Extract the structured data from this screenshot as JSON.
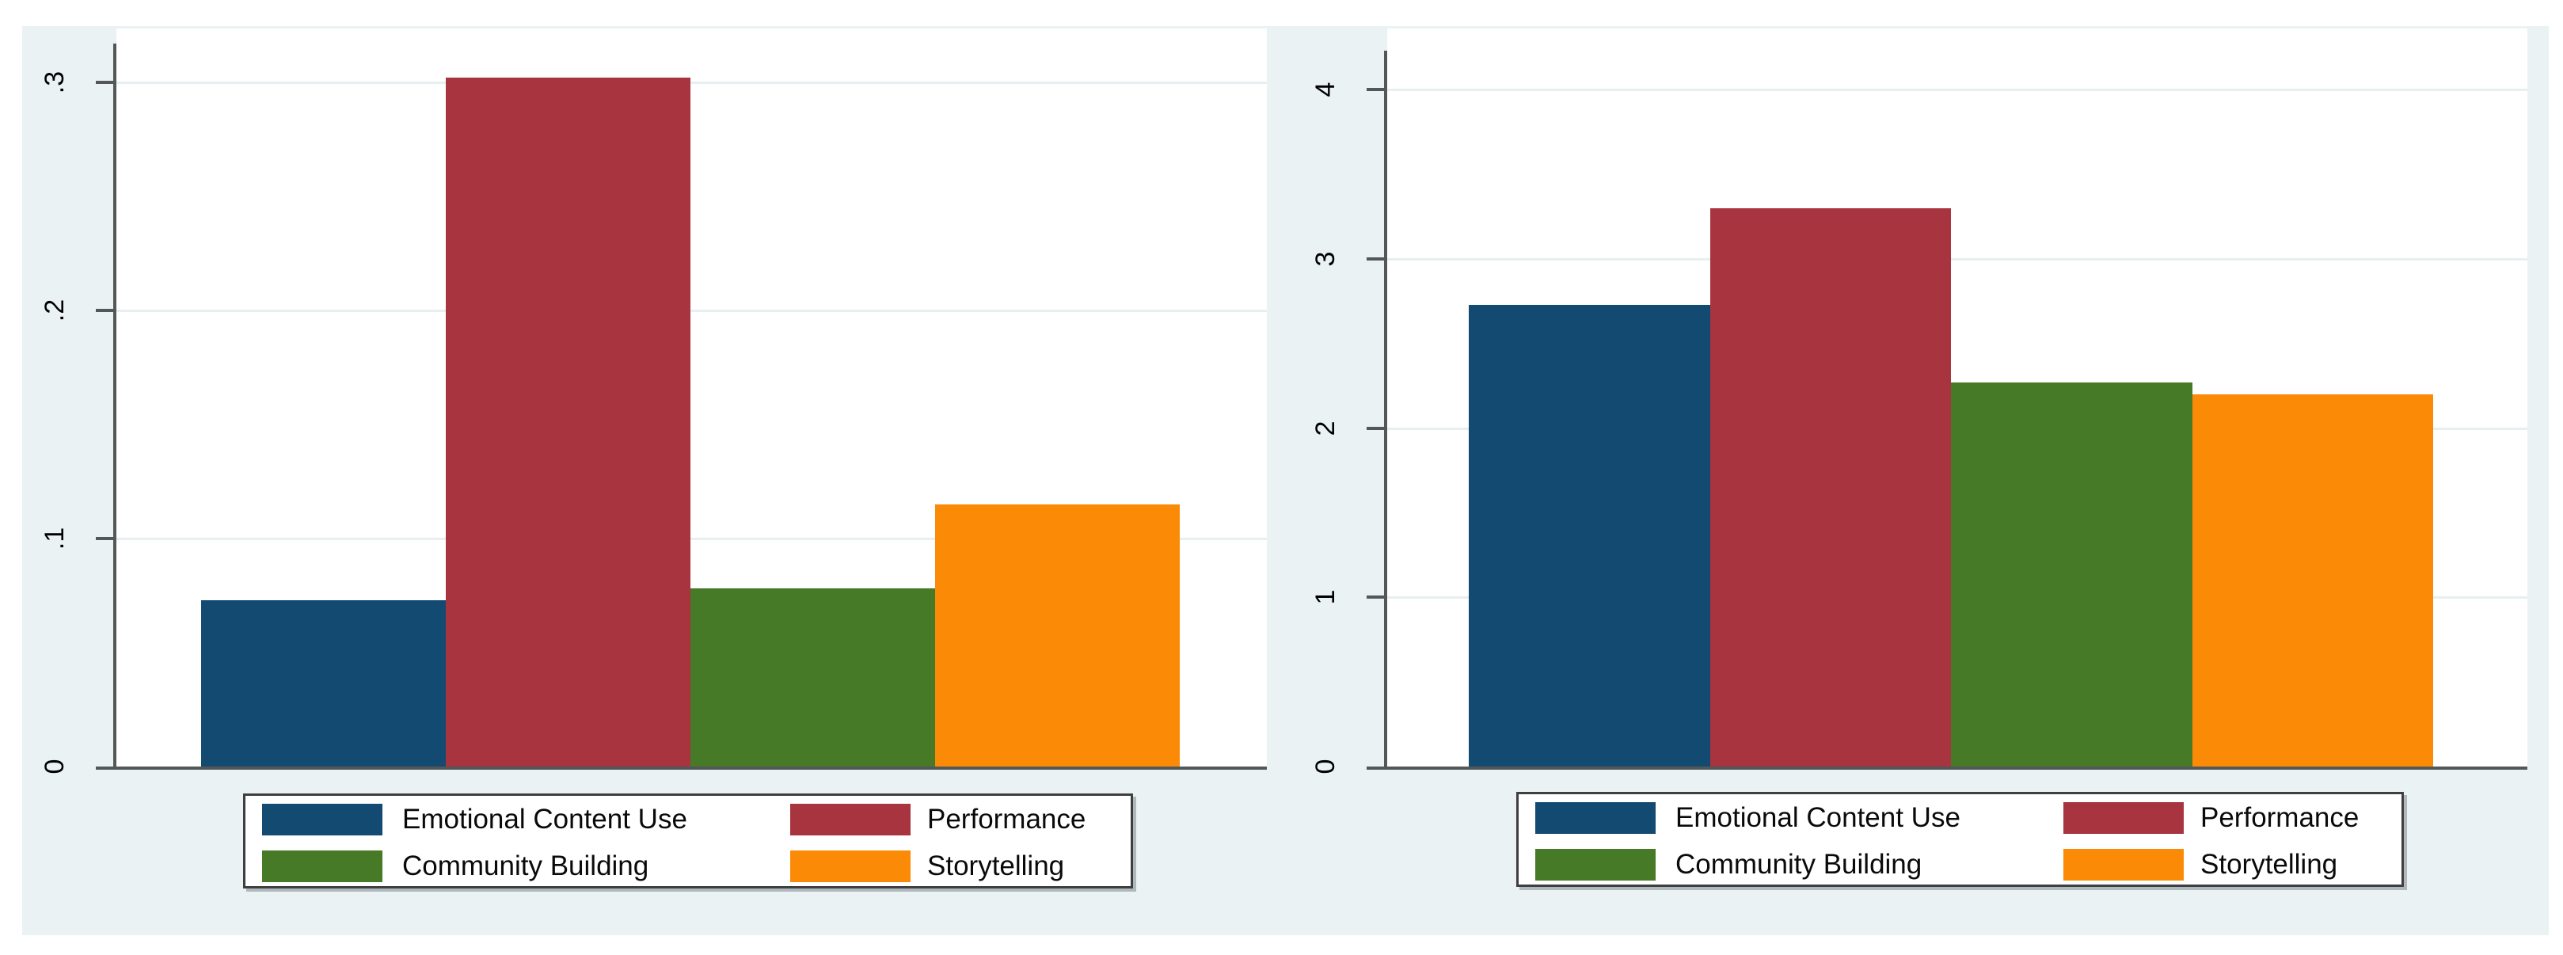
{
  "figure": {
    "page_background": "#ffffff",
    "plot_background": "#ffffff",
    "background": "#eaf2f3"
  },
  "palette": {
    "axis": "#545758",
    "grid": "#e7eff0",
    "tick_label": "#000000",
    "legend_border": "#3f3f3f",
    "navy": "#134a72",
    "maroon": "#a83440",
    "green": "#467a26",
    "orange": "#fb8b06"
  },
  "legend": {
    "entries": [
      {
        "label": "Emotional Content Use",
        "color": "#134a72"
      },
      {
        "label": "Performance",
        "color": "#a83440"
      },
      {
        "label": "Community Building",
        "color": "#467a26"
      },
      {
        "label": "Storytelling",
        "color": "#fb8b06"
      }
    ]
  },
  "chart_data": [
    {
      "type": "bar",
      "panel": "left",
      "title": "",
      "xlabel": "",
      "ylabel": "",
      "categories": [
        "Emotional Content Use",
        "Performance",
        "Community Building",
        "Storytelling"
      ],
      "values": [
        0.073,
        0.302,
        0.078,
        0.115
      ],
      "bar_colors": [
        "#134a72",
        "#a83440",
        "#467a26",
        "#fb8b06"
      ],
      "ylim": [
        0,
        0.32
      ],
      "yticks": [
        {
          "value": 0,
          "label": "0"
        },
        {
          "value": 0.1,
          "label": ".1"
        },
        {
          "value": 0.2,
          "label": ".2"
        },
        {
          "value": 0.3,
          "label": ".3"
        }
      ],
      "grid": true,
      "legend_position": "bottom"
    },
    {
      "type": "bar",
      "panel": "right",
      "title": "",
      "xlabel": "",
      "ylabel": "",
      "categories": [
        "Emotional Content Use",
        "Performance",
        "Community Building",
        "Storytelling"
      ],
      "values": [
        2.73,
        3.3,
        2.27,
        2.2
      ],
      "bar_colors": [
        "#134a72",
        "#a83440",
        "#467a26",
        "#fb8b06"
      ],
      "ylim": [
        0,
        4.2
      ],
      "yticks": [
        {
          "value": 0,
          "label": "0"
        },
        {
          "value": 1,
          "label": "1"
        },
        {
          "value": 2,
          "label": "2"
        },
        {
          "value": 3,
          "label": "3"
        },
        {
          "value": 4,
          "label": "4"
        }
      ],
      "grid": true,
      "legend_position": "bottom"
    }
  ]
}
